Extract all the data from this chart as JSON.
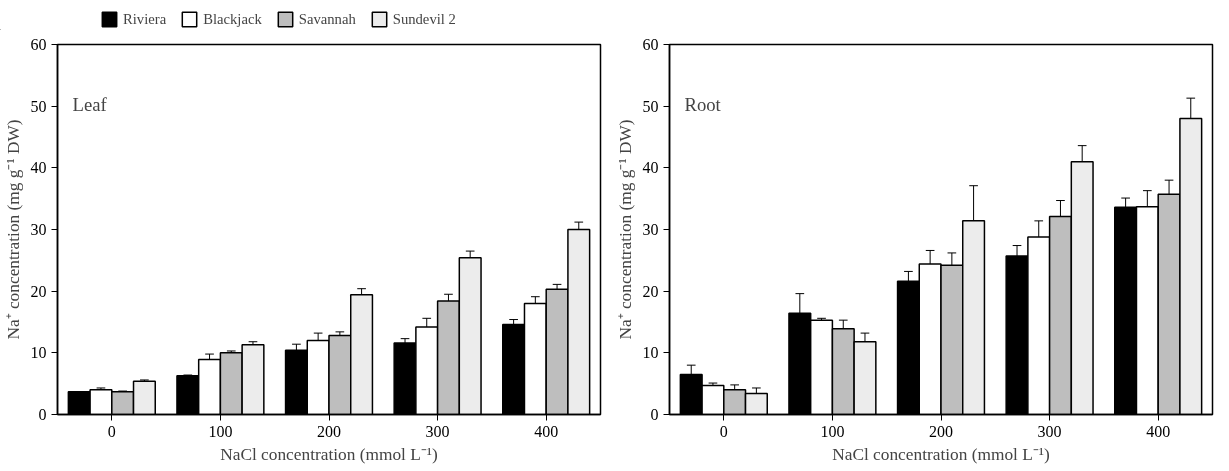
{
  "chart_data": [
    {
      "type": "bar",
      "categories": [
        "0",
        "100",
        "200",
        "300",
        "400"
      ],
      "xlabel": "NaCl concentration (mmol L⁻¹)",
      "ylabel": "Na⁺ concentration (mg g⁻¹ DW)",
      "annotations": [
        "Leaf"
      ],
      "ylim": [
        0,
        60
      ],
      "yticks": [
        0,
        10,
        20,
        30,
        40,
        50,
        60
      ],
      "grid": false,
      "legend": "top",
      "series": [
        {
          "name": "Riviera",
          "color": "#000000",
          "values": [
            3.7,
            6.3,
            10.4,
            11.6,
            14.6
          ],
          "errors": [
            null,
            0.1,
            1.0,
            0.7,
            0.8
          ]
        },
        {
          "name": "Blackjack",
          "color": "#ffffff",
          "values": [
            4.0,
            8.9,
            12.0,
            14.2,
            18.0
          ],
          "errors": [
            0.3,
            0.9,
            1.2,
            1.4,
            1.1
          ]
        },
        {
          "name": "Savannah",
          "color": "#bebebe",
          "values": [
            3.7,
            10.0,
            12.8,
            18.4,
            20.3
          ],
          "errors": [
            0.1,
            0.3,
            0.6,
            1.1,
            0.8
          ]
        },
        {
          "name": "Sundevil 2",
          "color": "#ececec",
          "values": [
            5.4,
            11.3,
            19.4,
            25.4,
            30.0
          ],
          "errors": [
            0.2,
            0.5,
            1.0,
            1.1,
            1.2
          ]
        }
      ]
    },
    {
      "type": "bar",
      "categories": [
        "0",
        "100",
        "200",
        "300",
        "400"
      ],
      "xlabel": "NaCl concentration (mmol L⁻¹)",
      "ylabel": "Na⁺ concentration (mg g⁻¹ DW)",
      "annotations": [
        "Root"
      ],
      "ylim": [
        0,
        60
      ],
      "yticks": [
        0,
        10,
        20,
        30,
        40,
        50,
        60
      ],
      "grid": false,
      "series": [
        {
          "color": "#000000",
          "values": [
            6.5,
            16.4,
            21.6,
            25.7,
            33.6
          ],
          "errors": [
            1.5,
            3.2,
            1.6,
            1.7,
            1.5
          ]
        },
        {
          "color": "#ffffff",
          "values": [
            4.7,
            15.3,
            24.4,
            28.8,
            33.7
          ],
          "errors": [
            0.4,
            0.3,
            2.2,
            2.6,
            2.6
          ]
        },
        {
          "color": "#bebebe",
          "values": [
            4.0,
            13.9,
            24.2,
            32.1,
            35.7
          ],
          "errors": [
            0.8,
            1.4,
            2.0,
            2.6,
            2.3
          ]
        },
        {
          "color": "#ececec",
          "values": [
            3.4,
            11.8,
            31.4,
            41.0,
            48.0
          ],
          "errors": [
            0.9,
            1.4,
            5.7,
            2.6,
            3.3
          ]
        }
      ]
    }
  ]
}
